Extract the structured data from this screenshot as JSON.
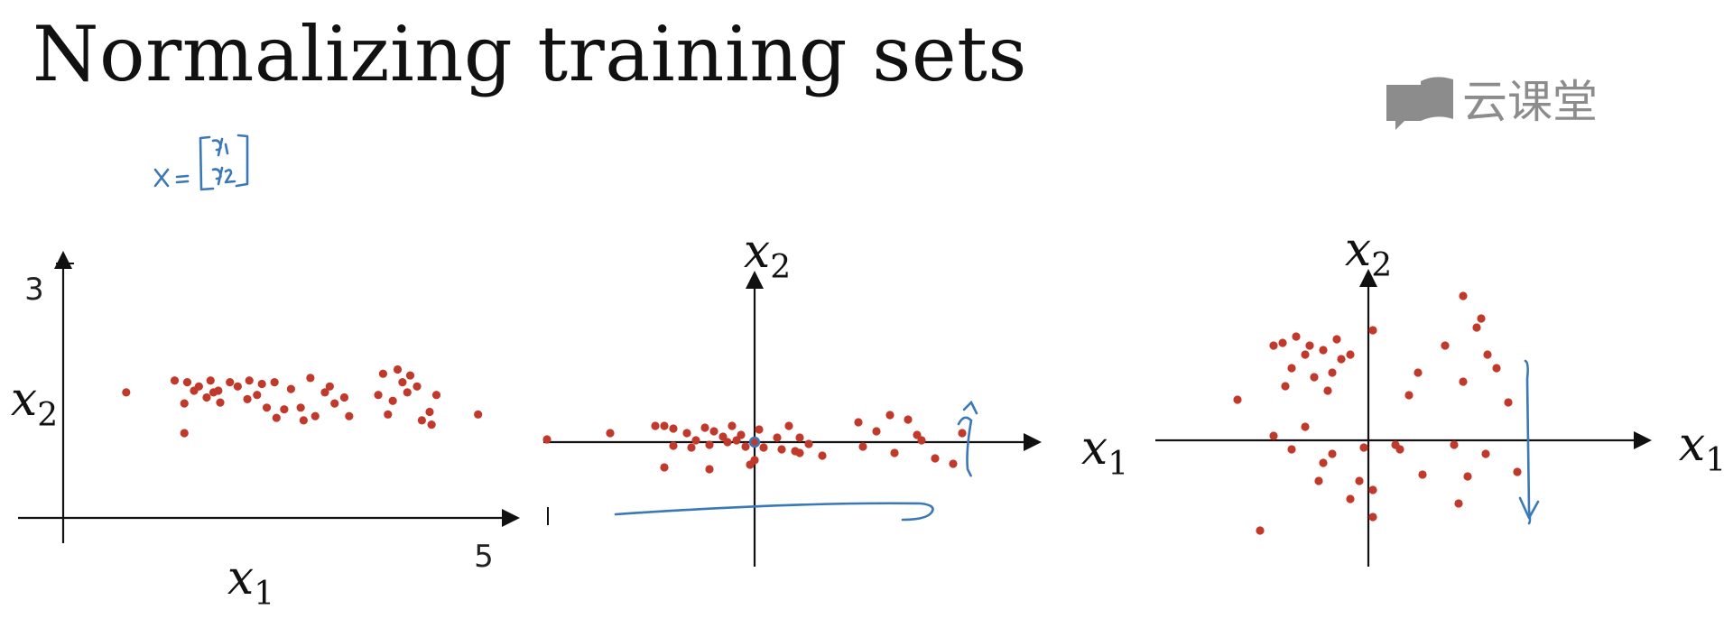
{
  "slide": {
    "title": "Normalizing training sets",
    "logo_text": "云课堂",
    "handwritten_note": "x = [x1, x2]",
    "colors": {
      "points": "#c0392b",
      "annotation": "#3a78b8",
      "axes": "#111111",
      "logo": "#8c8c8c"
    }
  },
  "chart_data": [
    {
      "type": "scatter",
      "title": "",
      "xlabel": "x1",
      "ylabel": "x2",
      "x_ticks": [
        "5"
      ],
      "y_ticks": [
        "3"
      ],
      "xlim": [
        0,
        5.4
      ],
      "ylim": [
        0,
        3.4
      ],
      "grid": false,
      "points": [
        [
          0.65,
          1.48
        ],
        [
          1.15,
          1.62
        ],
        [
          1.28,
          1.6
        ],
        [
          1.4,
          1.55
        ],
        [
          1.52,
          1.62
        ],
        [
          1.6,
          1.5
        ],
        [
          1.72,
          1.6
        ],
        [
          1.8,
          1.55
        ],
        [
          1.92,
          1.62
        ],
        [
          2.05,
          1.58
        ],
        [
          2.18,
          1.6
        ],
        [
          2.35,
          1.52
        ],
        [
          2.55,
          1.65
        ],
        [
          2.7,
          1.48
        ],
        [
          2.75,
          1.55
        ],
        [
          3.3,
          1.7
        ],
        [
          3.45,
          1.75
        ],
        [
          3.58,
          1.68
        ],
        [
          3.65,
          1.55
        ],
        [
          3.85,
          1.45
        ],
        [
          1.25,
          1.35
        ],
        [
          1.48,
          1.42
        ],
        [
          1.62,
          1.36
        ],
        [
          1.9,
          1.4
        ],
        [
          2.1,
          1.3
        ],
        [
          2.28,
          1.28
        ],
        [
          2.45,
          1.3
        ],
        [
          2.6,
          1.2
        ],
        [
          2.8,
          1.35
        ],
        [
          3.25,
          1.45
        ],
        [
          3.4,
          1.38
        ],
        [
          3.55,
          1.48
        ],
        [
          3.78,
          1.25
        ],
        [
          4.28,
          1.22
        ],
        [
          1.25,
          1.0
        ],
        [
          2.2,
          1.18
        ],
        [
          2.48,
          1.15
        ],
        [
          2.95,
          1.2
        ],
        [
          3.35,
          1.22
        ],
        [
          3.7,
          1.15
        ],
        [
          1.55,
          1.48
        ],
        [
          1.35,
          1.5
        ],
        [
          2.0,
          1.45
        ],
        [
          2.9,
          1.42
        ],
        [
          3.5,
          1.6
        ],
        [
          3.8,
          1.1
        ]
      ]
    },
    {
      "type": "scatter",
      "title": "",
      "xlabel": "x1",
      "ylabel": "x2",
      "xlim": [
        -2.6,
        3.9
      ],
      "ylim": [
        -1.7,
        2.2
      ],
      "grid": false,
      "points": [
        [
          -2.3,
          0.03
        ],
        [
          -1.6,
          0.1
        ],
        [
          -1.1,
          0.18
        ],
        [
          -1.0,
          0.18
        ],
        [
          -0.9,
          0.15
        ],
        [
          -0.75,
          0.1
        ],
        [
          -0.65,
          0.02
        ],
        [
          -0.55,
          0.16
        ],
        [
          -0.45,
          0.12
        ],
        [
          -0.35,
          0.06
        ],
        [
          -0.25,
          0.18
        ],
        [
          -0.15,
          0.08
        ],
        [
          0.05,
          0.14
        ],
        [
          0.25,
          0.05
        ],
        [
          0.38,
          0.18
        ],
        [
          0.5,
          0.05
        ],
        [
          1.15,
          0.22
        ],
        [
          1.35,
          0.12
        ],
        [
          1.5,
          0.3
        ],
        [
          1.7,
          0.25
        ],
        [
          1.8,
          0.08
        ],
        [
          2.3,
          0.1
        ],
        [
          -0.9,
          -0.04
        ],
        [
          -0.7,
          -0.06
        ],
        [
          -0.5,
          -0.03
        ],
        [
          -0.3,
          0.0
        ],
        [
          -0.1,
          -0.05
        ],
        [
          0.1,
          -0.06
        ],
        [
          0.3,
          -0.08
        ],
        [
          0.45,
          -0.1
        ],
        [
          0.6,
          -0.02
        ],
        [
          0.0,
          -0.2
        ],
        [
          -0.05,
          -0.25
        ],
        [
          0.5,
          -0.12
        ],
        [
          1.2,
          -0.05
        ],
        [
          1.55,
          -0.12
        ],
        [
          2.0,
          -0.18
        ],
        [
          2.2,
          -0.24
        ],
        [
          -1.0,
          -0.28
        ],
        [
          -0.5,
          -0.3
        ],
        [
          0.0,
          0.0
        ],
        [
          1.85,
          0.02
        ],
        [
          0.75,
          -0.15
        ],
        [
          -0.2,
          0.02
        ]
      ]
    },
    {
      "type": "scatter",
      "title": "",
      "xlabel": "x1",
      "ylabel": "x2",
      "xlim": [
        -2.6,
        3.9
      ],
      "ylim": [
        -1.7,
        2.2
      ],
      "grid": false,
      "points": [
        [
          -1.45,
          0.45
        ],
        [
          -1.05,
          1.05
        ],
        [
          -0.95,
          1.08
        ],
        [
          -0.8,
          1.15
        ],
        [
          -0.65,
          1.05
        ],
        [
          -0.5,
          1.0
        ],
        [
          -0.35,
          1.12
        ],
        [
          -0.85,
          0.8
        ],
        [
          -0.7,
          0.95
        ],
        [
          -0.6,
          0.7
        ],
        [
          -0.45,
          0.55
        ],
        [
          -0.4,
          0.75
        ],
        [
          -0.3,
          0.9
        ],
        [
          -0.2,
          0.95
        ],
        [
          -0.92,
          0.6
        ],
        [
          0.05,
          1.22
        ],
        [
          0.45,
          0.5
        ],
        [
          0.55,
          0.75
        ],
        [
          0.85,
          1.05
        ],
        [
          1.05,
          1.6
        ],
        [
          1.2,
          1.25
        ],
        [
          1.32,
          0.95
        ],
        [
          1.42,
          0.8
        ],
        [
          1.25,
          1.35
        ],
        [
          1.05,
          0.65
        ],
        [
          1.55,
          0.42
        ],
        [
          -1.05,
          0.05
        ],
        [
          -0.85,
          -0.1
        ],
        [
          -0.5,
          -0.25
        ],
        [
          -0.4,
          -0.15
        ],
        [
          -0.05,
          -0.08
        ],
        [
          0.35,
          -0.1
        ],
        [
          0.95,
          -0.05
        ],
        [
          -0.55,
          -0.45
        ],
        [
          -0.1,
          -0.45
        ],
        [
          -0.2,
          -0.65
        ],
        [
          0.05,
          -0.55
        ],
        [
          0.6,
          -0.38
        ],
        [
          1.0,
          -0.7
        ],
        [
          1.1,
          -0.4
        ],
        [
          1.3,
          -0.15
        ],
        [
          1.65,
          -0.35
        ],
        [
          -1.2,
          -1.0
        ],
        [
          0.05,
          -0.85
        ],
        [
          0.3,
          -0.05
        ],
        [
          -0.7,
          0.15
        ]
      ]
    }
  ]
}
